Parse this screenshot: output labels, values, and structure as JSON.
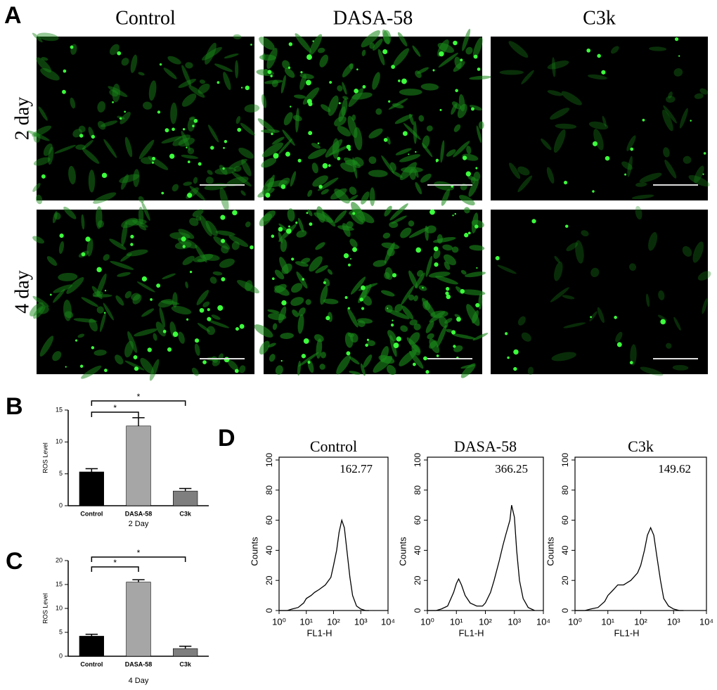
{
  "panel_labels": [
    "A",
    "B",
    "C",
    "D"
  ],
  "images": {
    "columns": [
      "Control",
      "DASA-58",
      "C3k"
    ],
    "rows": [
      "2 day",
      "4 day"
    ]
  },
  "chart_data": [
    {
      "type": "bar",
      "categories": [
        "Control",
        "DASA-58",
        "C3k"
      ],
      "values": [
        5.3,
        12.5,
        2.3
      ],
      "errors": [
        0.5,
        1.3,
        0.4
      ],
      "colors": [
        "#000000",
        "#a6a6a6",
        "#7f7f7f"
      ],
      "ylabel": "ROS Level",
      "xlabel": "2 Day",
      "ylim": [
        0,
        15
      ],
      "yticks": [
        0,
        5,
        10,
        15
      ],
      "annotations": [
        {
          "label": "*",
          "between": [
            0,
            1
          ]
        },
        {
          "label": "*",
          "between": [
            0,
            2
          ]
        }
      ]
    },
    {
      "type": "bar",
      "categories": [
        "Control",
        "DASA-58",
        "C3k"
      ],
      "values": [
        4.2,
        15.5,
        1.6
      ],
      "errors": [
        0.4,
        0.5,
        0.5
      ],
      "colors": [
        "#000000",
        "#a6a6a6",
        "#7f7f7f"
      ],
      "ylabel": "ROS Level",
      "xlabel": "4 Day",
      "ylim": [
        0,
        20
      ],
      "yticks": [
        0,
        5,
        10,
        15,
        20
      ],
      "annotations": [
        {
          "label": "*",
          "between": [
            0,
            1
          ]
        },
        {
          "label": "*",
          "between": [
            0,
            2
          ]
        }
      ]
    },
    {
      "type": "line",
      "title": "Control",
      "annotation": "162.77",
      "xlabel": "FL1-H",
      "ylabel": "Counts",
      "log_x": true,
      "color": "#000000",
      "x": [
        1,
        2,
        3,
        5,
        8,
        10,
        15,
        20,
        30,
        50,
        80,
        100,
        130,
        160,
        200,
        250,
        300,
        400,
        500,
        700,
        1000,
        1500,
        2000
      ],
      "values": [
        0,
        0,
        1,
        2,
        5,
        8,
        10,
        12,
        14,
        17,
        22,
        30,
        40,
        52,
        60,
        55,
        42,
        22,
        10,
        3,
        1,
        0,
        0
      ],
      "xlim": [
        1,
        10000
      ],
      "xticks": [
        {
          "value": 1,
          "label": "10⁰"
        },
        {
          "value": 10,
          "label": "10¹"
        },
        {
          "value": 100,
          "label": "10²"
        },
        {
          "value": 1000,
          "label": "10³"
        },
        {
          "value": 10000,
          "label": "10⁴"
        }
      ],
      "ylim": [
        0,
        100
      ],
      "yticks": [
        0,
        20,
        40,
        60,
        80,
        100
      ]
    },
    {
      "type": "line",
      "title": "DASA-58",
      "annotation": "366.25",
      "xlabel": "FL1-H",
      "ylabel": "Counts",
      "log_x": true,
      "color": "#000000",
      "x": [
        1,
        2,
        3,
        5,
        8,
        10,
        12,
        15,
        20,
        30,
        50,
        80,
        100,
        150,
        200,
        300,
        400,
        500,
        700,
        800,
        1000,
        1200,
        1500,
        2000,
        3000,
        5000
      ],
      "values": [
        0,
        0,
        1,
        3,
        12,
        18,
        21,
        17,
        10,
        5,
        3,
        3,
        5,
        12,
        20,
        33,
        43,
        50,
        60,
        70,
        62,
        40,
        20,
        8,
        2,
        0
      ],
      "xlim": [
        1,
        10000
      ],
      "xticks": [
        {
          "value": 1,
          "label": "10⁰"
        },
        {
          "value": 10,
          "label": "10¹"
        },
        {
          "value": 100,
          "label": "10²"
        },
        {
          "value": 1000,
          "label": "10³"
        },
        {
          "value": 10000,
          "label": "10⁴"
        }
      ],
      "ylim": [
        0,
        100
      ],
      "yticks": [
        0,
        20,
        40,
        60,
        80,
        100
      ]
    },
    {
      "type": "line",
      "title": "C3k",
      "annotation": "149.62",
      "xlabel": "FL1-H",
      "ylabel": "Counts",
      "log_x": true,
      "color": "#000000",
      "x": [
        1,
        2,
        3,
        5,
        8,
        10,
        15,
        20,
        30,
        50,
        80,
        100,
        130,
        160,
        200,
        250,
        300,
        400,
        500,
        700,
        1000,
        1500,
        2000
      ],
      "values": [
        0,
        0,
        1,
        2,
        6,
        10,
        14,
        17,
        17,
        20,
        25,
        30,
        40,
        50,
        55,
        50,
        38,
        20,
        8,
        3,
        1,
        0,
        0
      ],
      "xlim": [
        1,
        10000
      ],
      "xticks": [
        {
          "value": 1,
          "label": "10⁰"
        },
        {
          "value": 10,
          "label": "10¹"
        },
        {
          "value": 100,
          "label": "10²"
        },
        {
          "value": 1000,
          "label": "10³"
        },
        {
          "value": 10000,
          "label": "10⁴"
        }
      ],
      "ylim": [
        0,
        100
      ],
      "yticks": [
        0,
        20,
        40,
        60,
        80,
        100
      ]
    }
  ]
}
